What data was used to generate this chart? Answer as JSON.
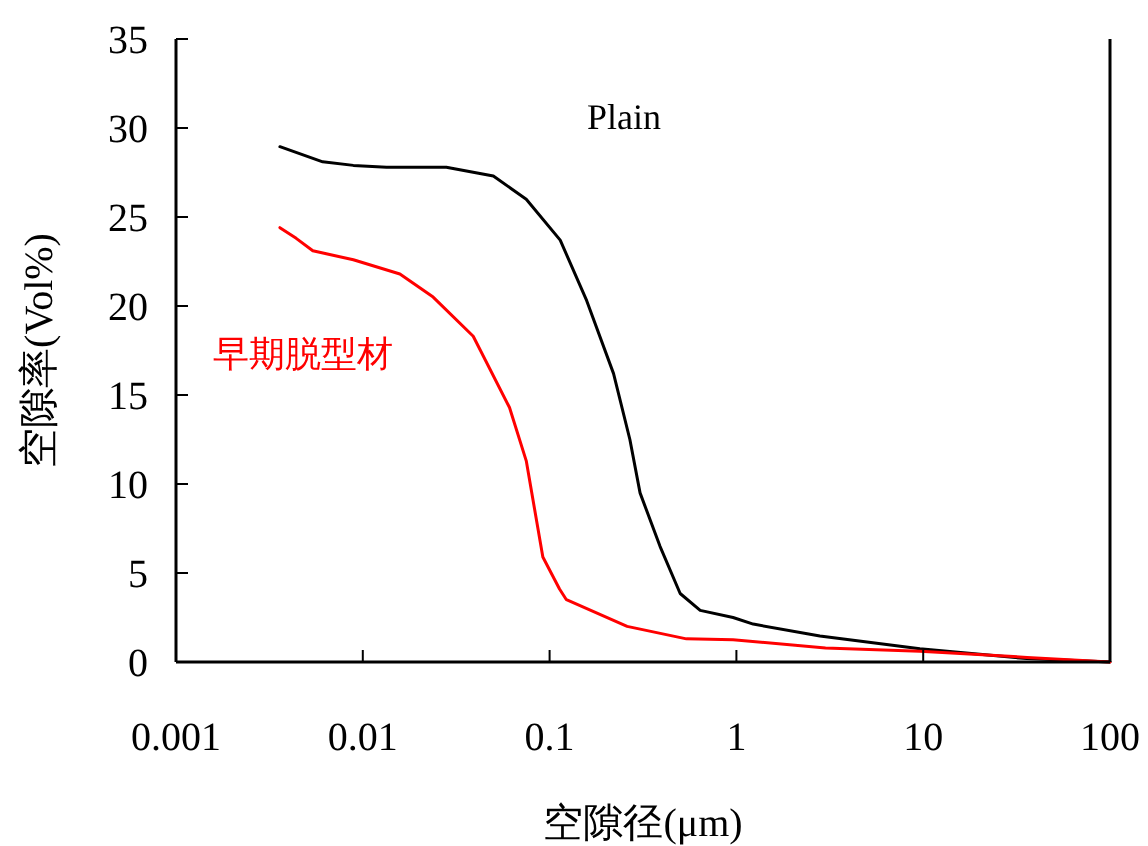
{
  "chart_data": {
    "type": "line",
    "xlabel": "空隙径(μm)",
    "ylabel": "空隙率(Vol%)",
    "log": "x",
    "xlim": [
      0.001,
      100
    ],
    "xticks": [
      0.001,
      0.01,
      0.1,
      1,
      10,
      100
    ],
    "ylim": [
      0,
      35
    ],
    "yticks": [
      0,
      5,
      10,
      15,
      20,
      25,
      30,
      35
    ],
    "grid": false,
    "legend": false,
    "marker": "none",
    "line_style": "solid",
    "series": [
      {
        "name": "Plain",
        "color": "#000000",
        "x": [
          0.0036,
          0.0061,
          0.0089,
          0.0134,
          0.028,
          0.05,
          0.075,
          0.114,
          0.158,
          0.22,
          0.269,
          0.305,
          0.39,
          0.5,
          0.64,
          0.96,
          1.23,
          2.8,
          9.6,
          35.8,
          100
        ],
        "values": [
          28.95,
          28.1,
          27.9,
          27.8,
          27.8,
          27.3,
          26.0,
          23.7,
          20.3,
          16.2,
          12.5,
          9.5,
          6.5,
          3.85,
          2.9,
          2.5,
          2.13,
          1.46,
          0.75,
          0.19,
          0
        ]
      },
      {
        "name": "早期脱型材",
        "color": "#ff0000",
        "x": [
          0.0036,
          0.0044,
          0.0054,
          0.0089,
          0.0158,
          0.0238,
          0.039,
          0.061,
          0.075,
          0.092,
          0.113,
          0.123,
          0.26,
          0.54,
          0.96,
          3.0,
          9.6,
          36,
          100
        ],
        "values": [
          24.4,
          23.8,
          23.1,
          22.6,
          21.8,
          20.5,
          18.3,
          14.3,
          11.3,
          5.9,
          4.1,
          3.5,
          2.0,
          1.3,
          1.25,
          0.79,
          0.6,
          0.26,
          0
        ]
      }
    ]
  }
}
